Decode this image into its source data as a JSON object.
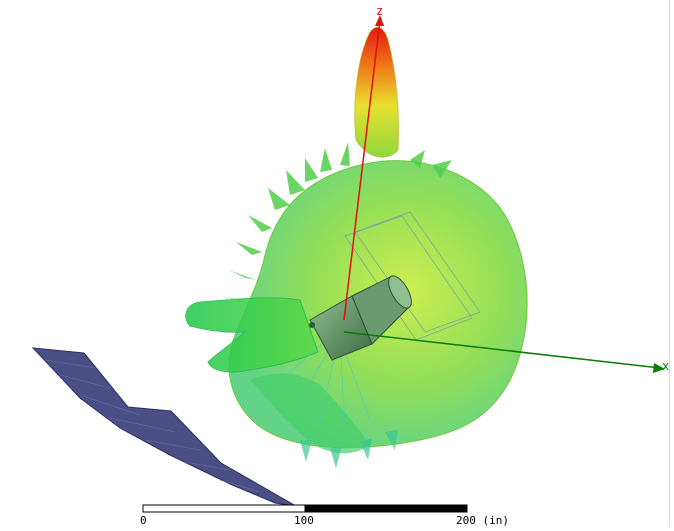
{
  "axes": {
    "z_label": "z",
    "x_label": "x",
    "z_color": "#e01010",
    "x_color": "#0a7a0a"
  },
  "colors": {
    "pattern_green": "#5fd23a",
    "pattern_yellow": "#e8e030",
    "pattern_red": "#e82010",
    "plate": "#4a4f86"
  },
  "scale_bar": {
    "ticks": [
      "0",
      "100",
      "200 (in)"
    ]
  }
}
